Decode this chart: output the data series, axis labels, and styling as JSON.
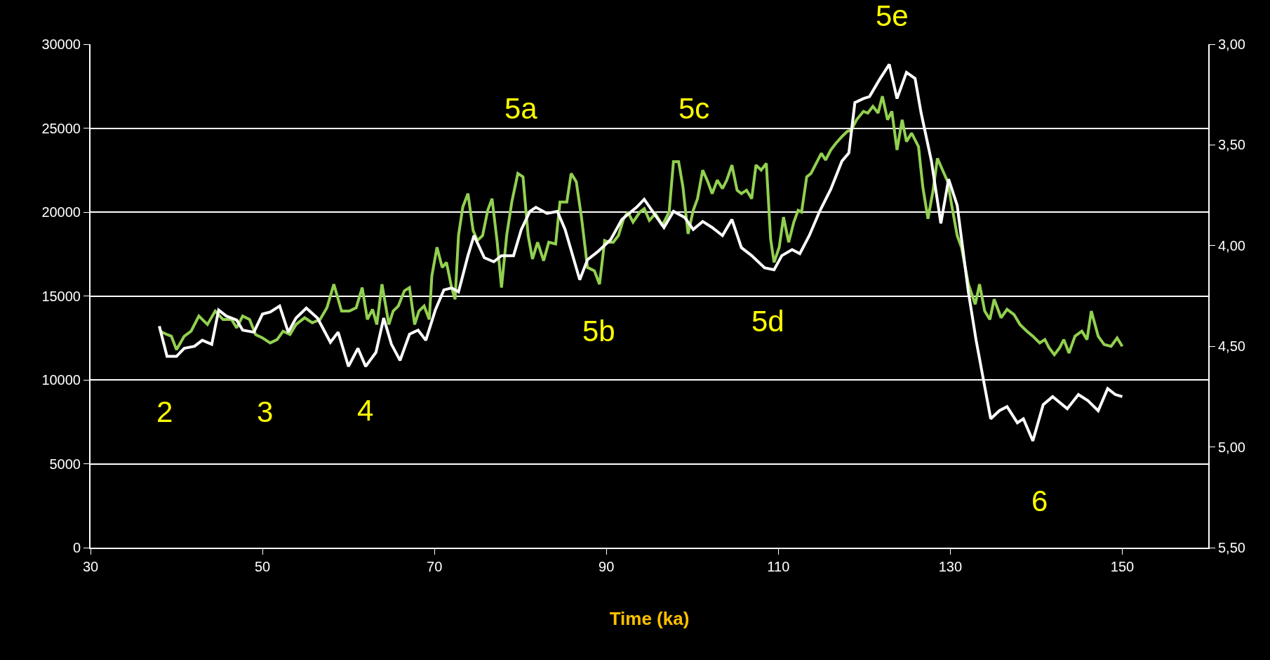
{
  "chart_data": {
    "type": "line",
    "xlabel": "Time (ka)",
    "xlim": [
      30,
      160
    ],
    "xticks": [
      30,
      50,
      70,
      90,
      110,
      130,
      150
    ],
    "ylim": [
      0,
      30000
    ],
    "yticks": [
      0,
      5000,
      10000,
      15000,
      20000,
      25000,
      30000
    ],
    "y2lim": [
      5.5,
      3.0
    ],
    "y2ticks": [
      {
        "value": 3.0,
        "label": "3,00"
      },
      {
        "value": 3.5,
        "label": "3,50"
      },
      {
        "value": 4.0,
        "label": "4,00"
      },
      {
        "value": 4.5,
        "label": "4,50"
      },
      {
        "value": 5.0,
        "label": "5,00"
      },
      {
        "value": 5.5,
        "label": "5,50"
      }
    ],
    "grid": "y",
    "marker": "none",
    "line_style": "solid",
    "series": [
      {
        "color": "#92d050",
        "x": [
          38.1,
          38.9,
          39.4,
          40.0,
          40.9,
          41.7,
          42.6,
          43.6,
          44.5,
          45.4,
          46.4,
          47.0,
          47.7,
          48.5,
          49.2,
          50.0,
          50.9,
          51.7,
          52.4,
          53.2,
          53.9,
          54.9,
          55.8,
          56.7,
          57.5,
          58.3,
          59.2,
          60.1,
          60.9,
          61.6,
          62.2,
          62.8,
          63.3,
          63.9,
          64.7,
          65.2,
          65.8,
          66.5,
          67.1,
          67.7,
          68.2,
          68.8,
          69.4,
          69.7,
          70.3,
          70.9,
          71.4,
          72.0,
          72.4,
          72.8,
          73.3,
          73.9,
          74.5,
          75.0,
          75.6,
          76.2,
          76.7,
          77.3,
          77.8,
          78.4,
          79.0,
          79.7,
          80.3,
          80.9,
          81.4,
          82.0,
          82.7,
          83.3,
          84.1,
          84.6,
          85.4,
          85.9,
          86.5,
          87.1,
          87.8,
          88.6,
          89.2,
          89.8,
          90.3,
          90.8,
          91.4,
          92.0,
          92.5,
          93.1,
          93.9,
          94.4,
          95.0,
          95.7,
          96.5,
          97.3,
          97.8,
          98.4,
          98.9,
          99.5,
          100.1,
          100.6,
          101.2,
          101.8,
          102.3,
          102.9,
          103.5,
          104.0,
          104.6,
          105.2,
          105.7,
          106.3,
          106.9,
          107.4,
          108.0,
          108.6,
          109.1,
          109.5,
          110.1,
          110.6,
          111.2,
          111.8,
          112.3,
          112.7,
          113.3,
          113.8,
          114.4,
          115.0,
          115.5,
          116.1,
          116.7,
          117.4,
          118.0,
          118.5,
          119.1,
          119.9,
          120.4,
          121.0,
          121.6,
          122.1,
          122.7,
          123.2,
          123.8,
          124.4,
          124.9,
          125.5,
          126.3,
          126.8,
          127.4,
          128.0,
          128.5,
          129.1,
          129.7,
          130.2,
          130.8,
          131.3,
          132.1,
          132.9,
          133.4,
          134.0,
          134.6,
          135.1,
          135.9,
          136.6,
          137.4,
          138.1,
          138.9,
          139.6,
          140.4,
          141.0,
          141.5,
          142.1,
          142.7,
          143.2,
          143.8,
          144.5,
          145.3,
          145.9,
          146.4,
          147.2,
          147.9,
          148.7,
          149.4,
          150.0
        ],
        "values": [
          12900,
          12700,
          12600,
          11800,
          12600,
          12900,
          13800,
          13300,
          14100,
          13600,
          13600,
          13100,
          13800,
          13600,
          12700,
          12500,
          12200,
          12400,
          12900,
          12700,
          13300,
          13700,
          13400,
          13600,
          14300,
          15700,
          14100,
          14100,
          14300,
          15500,
          13600,
          14200,
          13300,
          15700,
          13300,
          14100,
          14400,
          15300,
          15500,
          13300,
          14100,
          14400,
          13600,
          16200,
          17900,
          16700,
          17000,
          15500,
          14800,
          18600,
          20300,
          21100,
          18900,
          18300,
          18600,
          20100,
          20800,
          18200,
          15500,
          18600,
          20600,
          22300,
          22100,
          18600,
          17200,
          18200,
          17100,
          18200,
          18100,
          20600,
          20600,
          22300,
          21800,
          19700,
          16700,
          16500,
          15700,
          18300,
          18200,
          18200,
          18600,
          19600,
          20000,
          19400,
          20000,
          20200,
          19500,
          19900,
          19200,
          20000,
          23000,
          23000,
          21500,
          18700,
          20100,
          20800,
          22500,
          21800,
          21100,
          21900,
          21400,
          21900,
          22800,
          21300,
          21100,
          21300,
          20800,
          22800,
          22500,
          22900,
          18400,
          17000,
          17900,
          19700,
          18200,
          19400,
          20100,
          20000,
          22100,
          22300,
          22900,
          23500,
          23100,
          23700,
          24100,
          24500,
          24800,
          24900,
          25500,
          26000,
          25900,
          26300,
          25900,
          26900,
          25500,
          26000,
          23700,
          25500,
          24200,
          24700,
          23900,
          21500,
          19600,
          21300,
          23200,
          22500,
          21800,
          20300,
          18600,
          17900,
          15700,
          14500,
          15700,
          14100,
          13600,
          14800,
          13700,
          14200,
          13900,
          13300,
          12900,
          12600,
          12200,
          12400,
          11900,
          11500,
          11900,
          12400,
          11600,
          12600,
          12900,
          12400,
          14100,
          12600,
          12100,
          12000,
          12500,
          12000
        ]
      },
      {
        "color": "#ffffff",
        "axis": "y2",
        "x": [
          38.0,
          38.9,
          40.0,
          40.9,
          42.1,
          43.0,
          44.1,
          44.9,
          45.8,
          47.0,
          47.7,
          49.0,
          50.0,
          50.9,
          52.0,
          53.0,
          53.9,
          55.1,
          56.4,
          56.9,
          57.9,
          58.8,
          60.0,
          61.1,
          62.0,
          63.2,
          64.1,
          65.0,
          66.0,
          67.1,
          68.1,
          69.0,
          70.1,
          71.1,
          72.0,
          72.8,
          73.9,
          74.6,
          75.8,
          76.9,
          77.8,
          79.2,
          80.1,
          81.1,
          81.8,
          83.1,
          84.3,
          85.2,
          86.9,
          87.8,
          89.0,
          90.5,
          91.8,
          93.5,
          94.4,
          95.7,
          96.7,
          97.8,
          99.1,
          100.1,
          101.2,
          102.3,
          103.5,
          104.6,
          105.7,
          106.9,
          108.4,
          109.5,
          110.4,
          111.6,
          112.5,
          113.6,
          114.8,
          116.1,
          117.4,
          118.2,
          118.9,
          119.9,
          120.6,
          121.7,
          122.9,
          123.8,
          124.9,
          125.9,
          126.6,
          127.8,
          128.9,
          129.8,
          130.8,
          132.1,
          133.0,
          134.0,
          134.7,
          135.7,
          136.6,
          137.8,
          138.5,
          139.6,
          140.8,
          141.9,
          143.6,
          144.9,
          146.0,
          147.2,
          148.3,
          149.2,
          150.0
        ],
        "values": [
          4.4,
          4.55,
          4.55,
          4.51,
          4.5,
          4.47,
          4.49,
          4.32,
          4.35,
          4.37,
          4.42,
          4.43,
          4.34,
          4.33,
          4.3,
          4.43,
          4.36,
          4.31,
          4.36,
          4.4,
          4.48,
          4.43,
          4.6,
          4.51,
          4.6,
          4.53,
          4.36,
          4.49,
          4.57,
          4.44,
          4.42,
          4.47,
          4.32,
          4.22,
          4.21,
          4.23,
          4.05,
          3.95,
          4.06,
          4.08,
          4.05,
          4.05,
          3.92,
          3.83,
          3.81,
          3.84,
          3.83,
          3.92,
          4.17,
          4.07,
          4.03,
          3.97,
          3.87,
          3.81,
          3.77,
          3.85,
          3.91,
          3.83,
          3.86,
          3.92,
          3.88,
          3.91,
          3.95,
          3.87,
          4.01,
          4.05,
          4.11,
          4.12,
          4.05,
          4.02,
          4.04,
          3.95,
          3.83,
          3.72,
          3.58,
          3.54,
          3.29,
          3.27,
          3.26,
          3.18,
          3.1,
          3.27,
          3.14,
          3.17,
          3.34,
          3.58,
          3.89,
          3.67,
          3.8,
          4.23,
          4.47,
          4.7,
          4.86,
          4.82,
          4.8,
          4.88,
          4.86,
          4.97,
          4.79,
          4.75,
          4.81,
          4.74,
          4.77,
          4.82,
          4.71,
          4.74,
          4.75
        ]
      }
    ],
    "annotations": [
      "2",
      "3",
      "4",
      "5a",
      "5b",
      "5c",
      "5d",
      "5e",
      "6"
    ]
  }
}
